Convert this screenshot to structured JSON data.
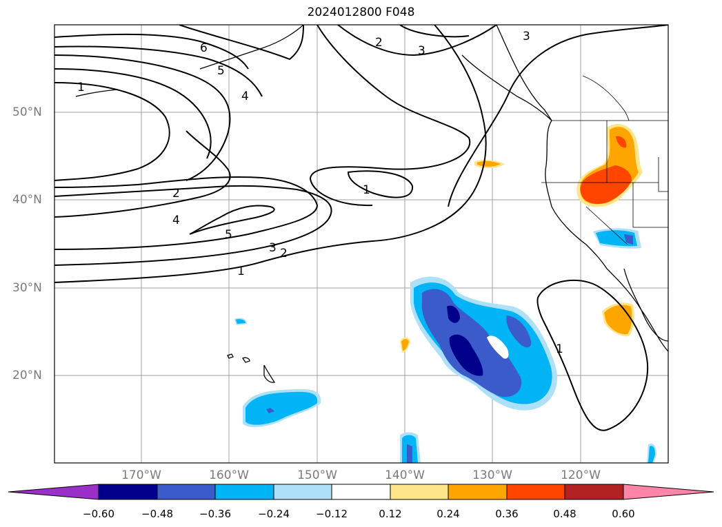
{
  "title": "2024012800 F048",
  "lat_labels": [
    "50°N",
    "40°N",
    "30°N",
    "20°N"
  ],
  "lon_labels": [
    "170°W",
    "160°W",
    "150°W",
    "140°W",
    "130°W",
    "120°W"
  ],
  "contour_labels": [
    "6",
    "5",
    "4",
    "1",
    "2",
    "4",
    "5",
    "3",
    "2",
    "1",
    "2",
    "3",
    "3",
    "1",
    "1"
  ],
  "colorbar": {
    "colors": [
      "#9b30c8",
      "#00008b",
      "#3a5bc9",
      "#00b4f5",
      "#aee0fa",
      "#ffffff",
      "#fde68a",
      "#ffa500",
      "#ff4500",
      "#b22222",
      "#ff85a8"
    ],
    "labels": [
      "−0.60",
      "−0.48",
      "−0.36",
      "−0.24",
      "−0.12",
      "0.12",
      "0.24",
      "0.36",
      "0.48",
      "0.60"
    ]
  }
}
